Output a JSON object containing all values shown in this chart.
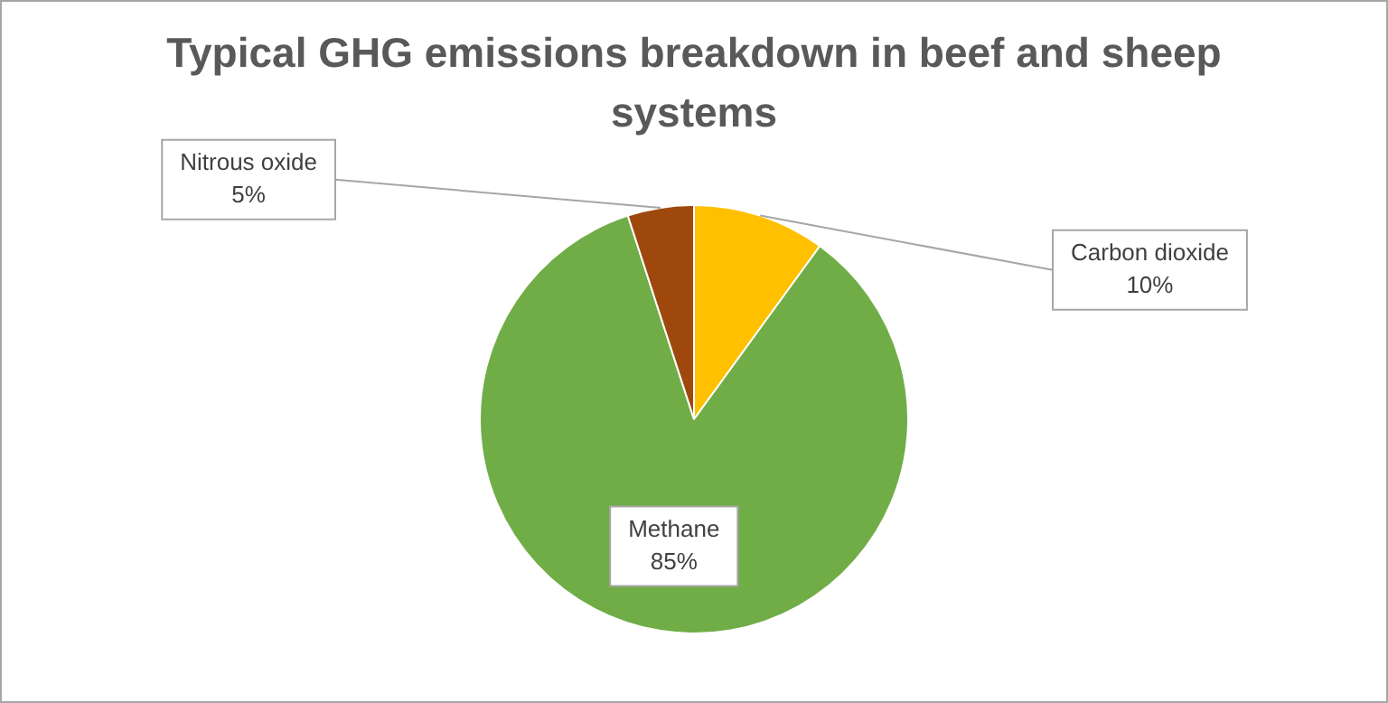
{
  "chart_data": {
    "type": "pie",
    "title": "Typical GHG emissions breakdown in beef and sheep systems",
    "categories": [
      "Carbon dioxide",
      "Methane",
      "Nitrous oxide"
    ],
    "values": [
      10,
      85,
      5
    ],
    "colors": [
      "#ffc000",
      "#70ad47",
      "#9e480e"
    ],
    "value_labels": [
      "10%",
      "85%",
      "5%"
    ],
    "legend": false
  }
}
